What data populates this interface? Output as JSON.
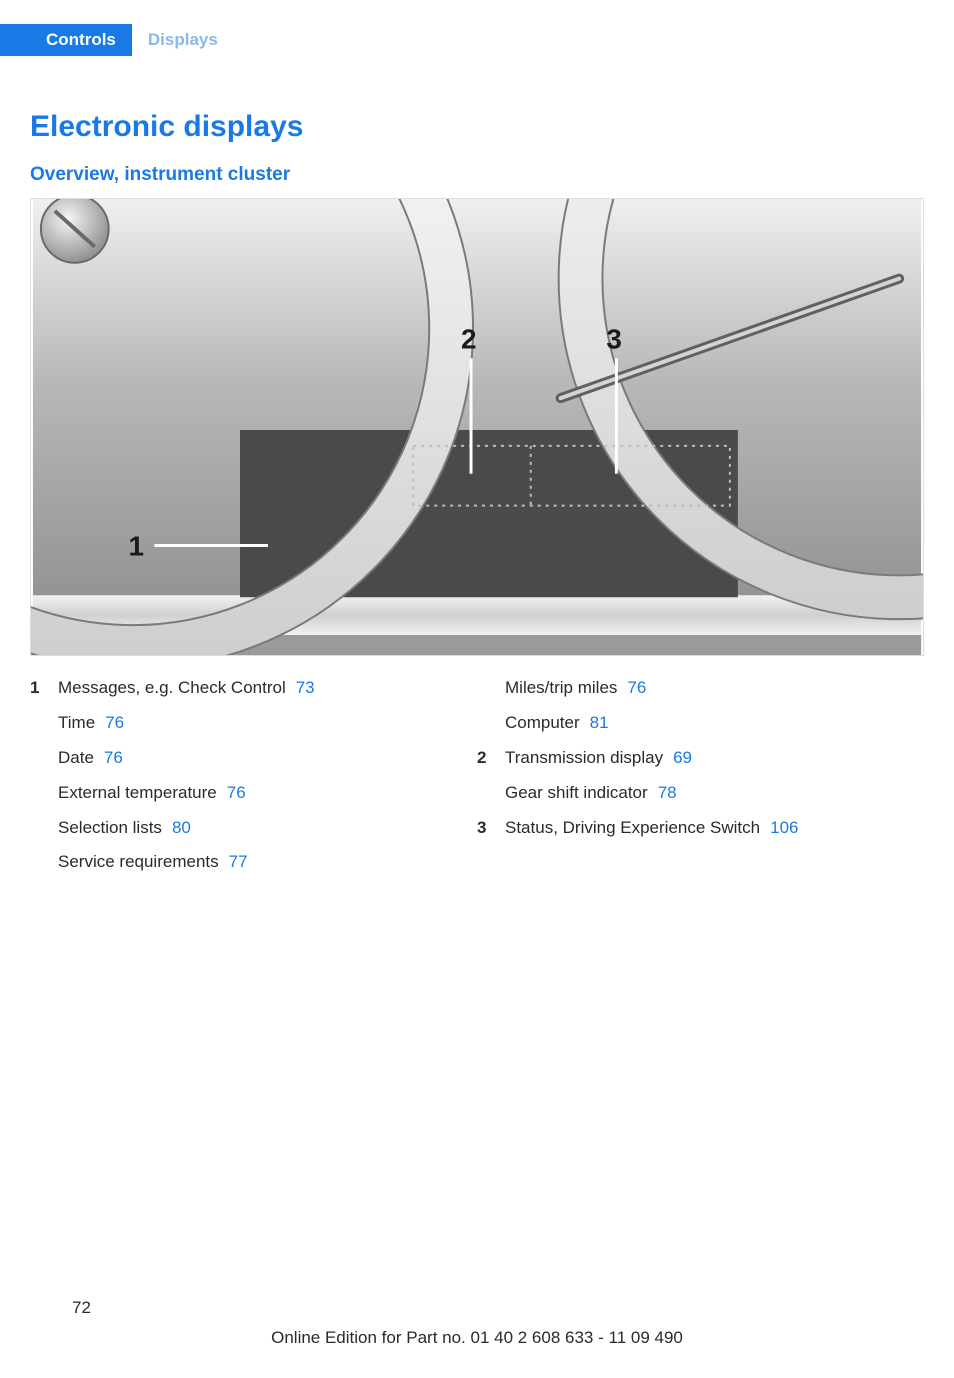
{
  "header": {
    "tab_active": "Controls",
    "tab_inactive": "Displays"
  },
  "titles": {
    "page": "Electronic displays",
    "sub": "Overview, instrument cluster"
  },
  "figure": {
    "callouts": [
      "1",
      "2",
      "3"
    ],
    "colors": {
      "bg_top": "#d8d8d8",
      "bg_mid": "#9a9a9a",
      "gauge_ring": "#ededed",
      "gauge_line": "#9a9a9a",
      "dark_panel": "#4a4a4a",
      "strip_light": "#e8e8e8",
      "label_text": "#1a1a1a"
    }
  },
  "legend": {
    "col1": [
      {
        "num": "1",
        "text": "Messages, e.g. Check Control",
        "ref": "73"
      },
      {
        "num": "",
        "text": "Time",
        "ref": "76"
      },
      {
        "num": "",
        "text": "Date",
        "ref": "76"
      },
      {
        "num": "",
        "text": "External temperature",
        "ref": "76"
      },
      {
        "num": "",
        "text": "Selection lists",
        "ref": "80"
      },
      {
        "num": "",
        "text": "Service requirements",
        "ref": "77"
      }
    ],
    "col2": [
      {
        "num": "",
        "text": "Miles/trip miles",
        "ref": "76"
      },
      {
        "num": "",
        "text": "Computer",
        "ref": "81"
      },
      {
        "num": "2",
        "text": "Transmission display",
        "ref": "69"
      },
      {
        "num": "",
        "text": "Gear shift indicator",
        "ref": "78"
      },
      {
        "num": "3",
        "text": "Status, Driving Experience Switch",
        "ref": "106"
      }
    ]
  },
  "footer": {
    "page": "72",
    "edition": "Online Edition for Part no. 01 40 2 608 633 - 11 09 490"
  }
}
